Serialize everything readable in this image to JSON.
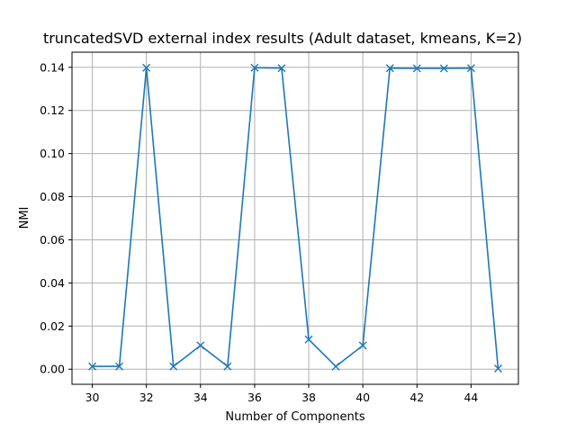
{
  "chart_data": {
    "type": "line",
    "title": "truncatedSVD external index results (Adult dataset, kmeans, K=2)",
    "xlabel": "Number of Components",
    "ylabel": "NMI",
    "xlim": [
      29.25,
      45.75
    ],
    "ylim": [
      -0.007,
      0.147
    ],
    "xticks": [
      30,
      32,
      34,
      36,
      38,
      40,
      42,
      44
    ],
    "xtick_labels": [
      "30",
      "32",
      "34",
      "36",
      "38",
      "40",
      "42",
      "44"
    ],
    "yticks": [
      0.0,
      0.02,
      0.04,
      0.06,
      0.08,
      0.1,
      0.12,
      0.14
    ],
    "ytick_labels": [
      "0.00",
      "0.02",
      "0.04",
      "0.06",
      "0.08",
      "0.10",
      "0.12",
      "0.14"
    ],
    "grid": true,
    "marker": "x",
    "color": "#1f77b4",
    "series": [
      {
        "x": [
          30,
          31,
          32,
          33,
          34,
          35,
          36,
          37,
          38,
          39,
          40,
          41,
          42,
          43,
          44,
          45
        ],
        "values": [
          0.0013,
          0.0013,
          0.1398,
          0.0013,
          0.011,
          0.0013,
          0.1398,
          0.1396,
          0.0138,
          0.0013,
          0.011,
          0.1396,
          0.1395,
          0.1395,
          0.1396,
          0.0003
        ]
      }
    ]
  }
}
